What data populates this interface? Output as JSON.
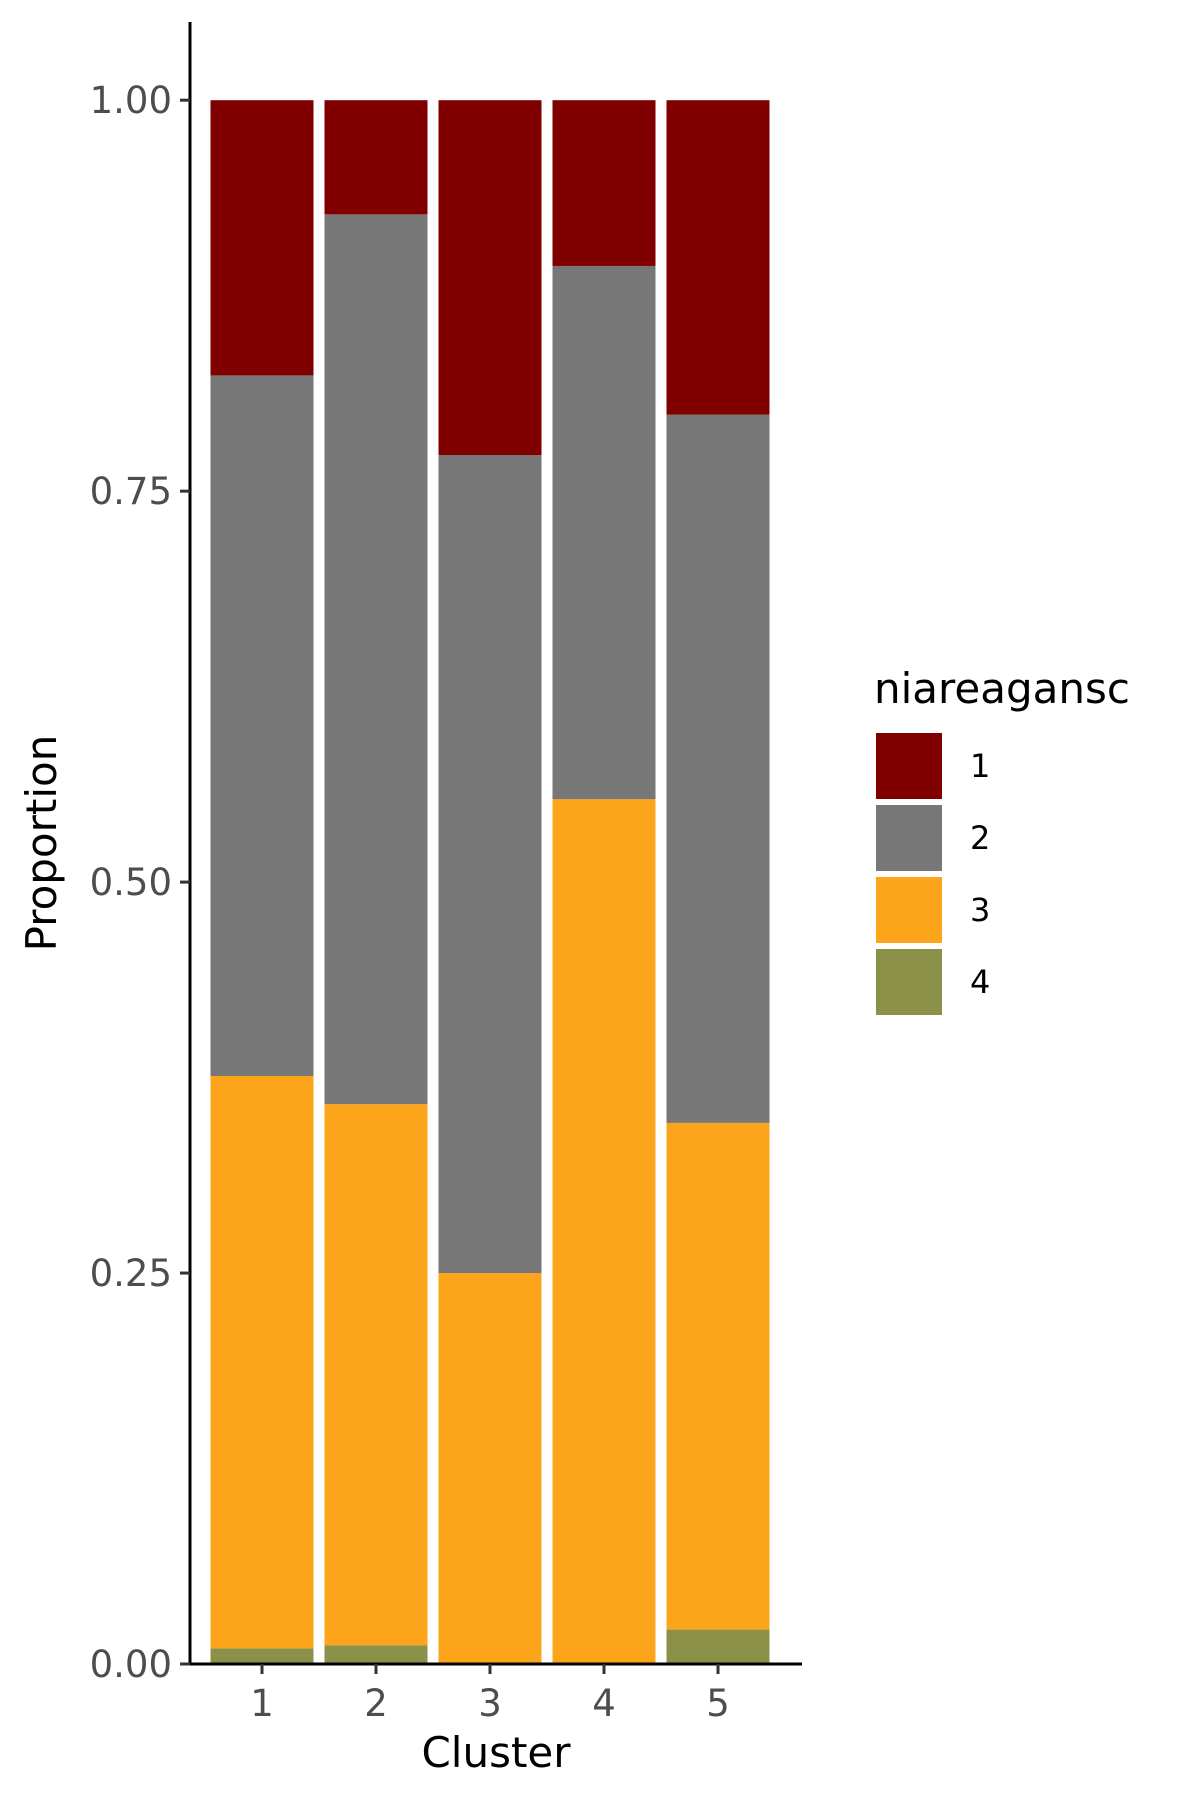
{
  "chart_data": {
    "type": "bar",
    "stacked": true,
    "categories": [
      "1",
      "2",
      "3",
      "4",
      "5"
    ],
    "series": [
      {
        "name": "4",
        "color": "#8B9148",
        "values": [
          0.01,
          0.012,
          0.0,
          0.0,
          0.022
        ]
      },
      {
        "name": "3",
        "color": "#FCA41A",
        "values": [
          0.366,
          0.346,
          0.25,
          0.553,
          0.324
        ]
      },
      {
        "name": "2",
        "color": "#777777",
        "values": [
          0.448,
          0.569,
          0.523,
          0.341,
          0.453
        ]
      },
      {
        "name": "1",
        "color": "#800000",
        "values": [
          0.176,
          0.073,
          0.227,
          0.106,
          0.201
        ]
      }
    ],
    "legend_order": [
      "1",
      "2",
      "3",
      "4"
    ],
    "title": "",
    "xlabel": "Cluster",
    "ylabel": "Proportion",
    "ylim": [
      0,
      1.05
    ],
    "yticks": [
      0,
      0.25,
      0.5,
      0.75,
      1.0
    ],
    "ytick_labels": [
      "0.00",
      "0.25",
      "0.50",
      "0.75",
      "1.00"
    ],
    "legend_title": "niareagansc",
    "legend_position": "right",
    "grid": false
  }
}
